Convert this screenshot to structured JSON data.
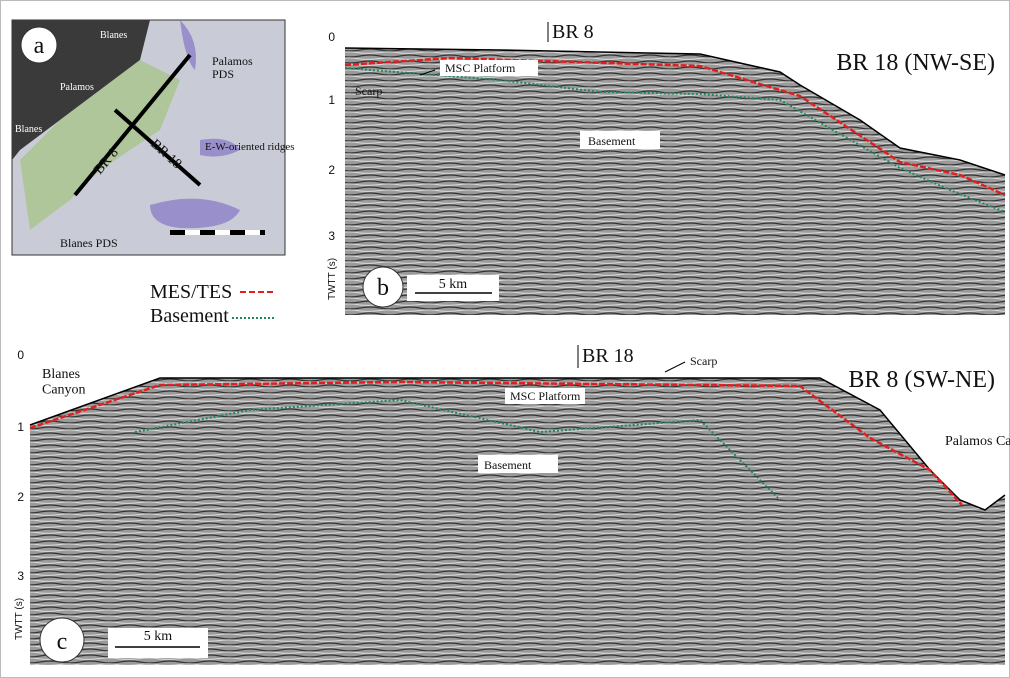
{
  "panel_a": {
    "letter": "a",
    "places": [
      "Blanes",
      "Palamos",
      "Blanes"
    ],
    "labels": {
      "palamos_pds": "Palamos PDS",
      "ridges": "E-W-oriented ridges",
      "br8": "BR 8",
      "br18": "BR 18",
      "blanes_pds": "Blanes PDS"
    }
  },
  "panel_b": {
    "letter": "b",
    "title": "BR 18 (NW-SE)",
    "crossing": "BR 8",
    "labels": {
      "platform": "MSC Platform",
      "scarp": "Scarp",
      "basement": "Basement"
    },
    "yticks": [
      "0",
      "1",
      "2",
      "3"
    ],
    "ylabel": "TWTT (s)",
    "scale": "5 km"
  },
  "legend": {
    "items": [
      "MES/TES",
      "Basement"
    ]
  },
  "panel_c": {
    "letter": "c",
    "title": "BR 8 (SW-NE)",
    "crossing": "BR 18",
    "labels": {
      "scarp": "Scarp",
      "blanes": "Blanes Canyon",
      "platform": "MSC Platform",
      "basement": "Basement",
      "palamos": "Palamos Canyon"
    },
    "yticks": [
      "0",
      "1",
      "2",
      "3"
    ],
    "ylabel": "TWTT (s)",
    "scale": "5 km"
  }
}
